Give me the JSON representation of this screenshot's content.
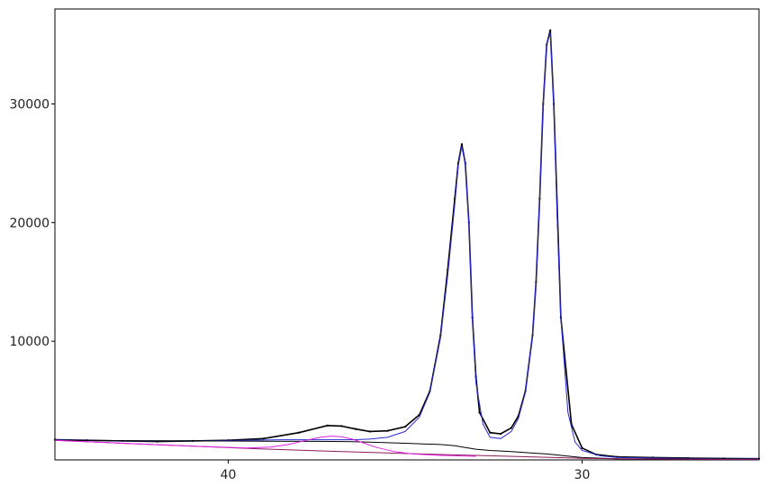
{
  "chart_data": {
    "type": "line",
    "title": "",
    "xlabel": "",
    "ylabel": "",
    "x_reversed": true,
    "xlim": [
      44.9,
      25.0
    ],
    "ylim": [
      0,
      38000
    ],
    "grid": false,
    "x_ticks": [
      {
        "value": 40,
        "label": "40"
      },
      {
        "value": 30,
        "label": "30"
      }
    ],
    "y_ticks": [
      {
        "value": 10000,
        "label": "10000"
      },
      {
        "value": 20000,
        "label": "20000"
      },
      {
        "value": 30000,
        "label": "30000"
      }
    ],
    "series": [
      {
        "kind": "points",
        "color": "#000000",
        "x": [
          44.9,
          44.0,
          43.0,
          42.0,
          41.0,
          40.0,
          39.0,
          38.0,
          37.2,
          36.8,
          36.4,
          36.0,
          35.5,
          35.0,
          34.6,
          34.3,
          34.0,
          33.8,
          33.6,
          33.5,
          33.4,
          33.3,
          33.2,
          33.1,
          33.0,
          32.9,
          32.6,
          32.3,
          32.0,
          31.8,
          31.6,
          31.4,
          31.3,
          31.2,
          31.1,
          31.0,
          30.9,
          30.8,
          30.6,
          30.3,
          30.0,
          29.6,
          29.0,
          28.0,
          27.0,
          26.0,
          25.0
        ],
        "y": [
          1700,
          1650,
          1600,
          1550,
          1600,
          1650,
          1800,
          2300,
          2900,
          2850,
          2600,
          2400,
          2450,
          2800,
          3800,
          5800,
          10500,
          16000,
          22000,
          25000,
          26600,
          25000,
          20000,
          12000,
          7000,
          4000,
          2300,
          2200,
          2700,
          3700,
          5800,
          10500,
          15000,
          22000,
          30000,
          35000,
          36200,
          30000,
          12000,
          3000,
          1000,
          450,
          250,
          200,
          150,
          120,
          100
        ]
      },
      {
        "kind": "fit",
        "color": "#2b2bd6",
        "x": [
          44.9,
          43.0,
          41.0,
          39.5,
          38.5,
          37.5,
          37.0,
          36.5,
          36.0,
          35.5,
          35.0,
          34.6,
          34.3,
          34.0,
          33.8,
          33.6,
          33.5,
          33.4,
          33.3,
          33.2,
          33.1,
          33.0,
          32.8,
          32.6,
          32.3,
          32.0,
          31.8,
          31.6,
          31.4,
          31.3,
          31.2,
          31.1,
          31.0,
          30.9,
          30.8,
          30.7,
          30.6,
          30.4,
          30.2,
          30.0,
          29.5,
          29.0,
          28.0,
          27.0,
          26.0,
          25.0
        ],
        "y": [
          1700,
          1600,
          1600,
          1650,
          1700,
          1700,
          1700,
          1700,
          1750,
          1900,
          2400,
          3600,
          5700,
          10300,
          15500,
          21500,
          24800,
          26400,
          25000,
          20000,
          12000,
          6500,
          3000,
          1900,
          1800,
          2400,
          3500,
          5700,
          10500,
          15000,
          22000,
          30000,
          35000,
          36000,
          30000,
          20000,
          12000,
          4000,
          1500,
          800,
          350,
          200,
          150,
          120,
          100,
          90
        ]
      },
      {
        "kind": "component",
        "color": "#000000",
        "x": [
          44.9,
          43.0,
          41.0,
          39.0,
          37.5,
          36.5,
          36.0,
          35.5,
          35.0,
          34.5,
          34.0,
          33.6,
          33.3,
          33.0,
          32.6,
          32.0,
          31.5,
          31.0,
          30.5,
          30.0,
          29.0,
          27.0,
          25.0
        ],
        "y": [
          1650,
          1620,
          1600,
          1580,
          1560,
          1540,
          1500,
          1450,
          1400,
          1350,
          1300,
          1200,
          1050,
          900,
          800,
          700,
          600,
          500,
          350,
          200,
          100,
          80,
          60
        ]
      },
      {
        "kind": "component",
        "color": "#8b1a5c",
        "x": [
          44.9,
          43.0,
          41.0,
          39.0,
          37.0,
          35.0,
          33.0,
          31.0,
          30.0,
          29.0,
          27.0,
          25.0
        ],
        "y": [
          1650,
          1400,
          1150,
          920,
          720,
          540,
          380,
          220,
          140,
          90,
          50,
          30
        ]
      },
      {
        "kind": "component",
        "color": "#e020e0",
        "x": [
          44.9,
          43.0,
          41.0,
          39.5,
          38.8,
          38.3,
          37.8,
          37.4,
          37.1,
          36.8,
          36.5,
          36.2,
          35.8,
          35.3,
          34.8,
          34.0,
          33.0
        ],
        "y": [
          1650,
          1400,
          1150,
          1000,
          1080,
          1300,
          1650,
          1900,
          2000,
          1950,
          1750,
          1450,
          1050,
          700,
          500,
          380,
          300
        ]
      }
    ]
  }
}
